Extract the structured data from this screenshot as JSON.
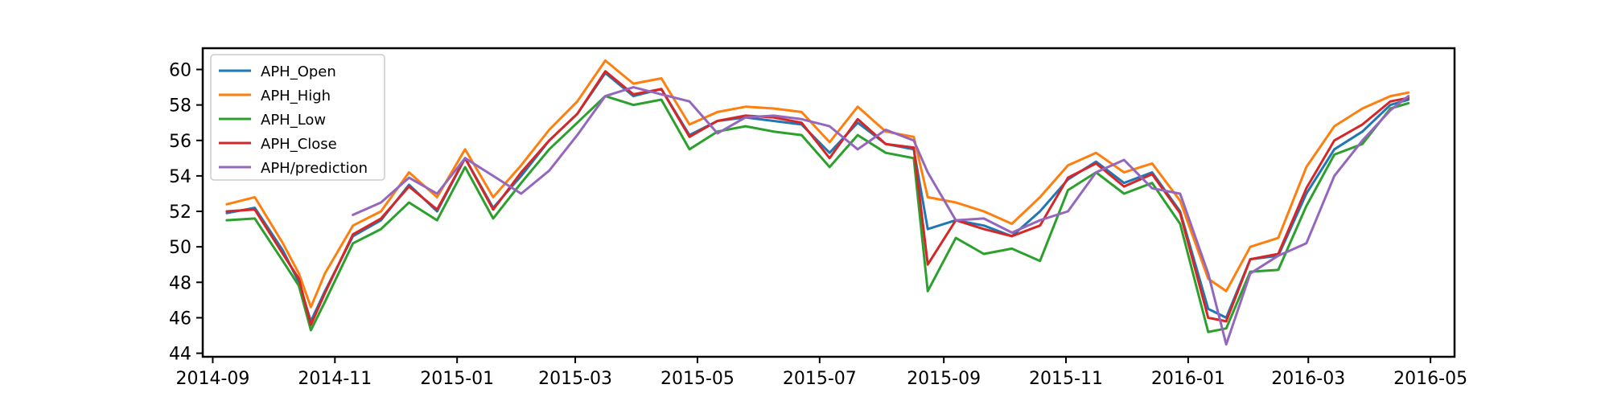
{
  "chart_data": {
    "type": "line",
    "title": "",
    "xlabel": "",
    "ylabel": "",
    "xlim": [
      "2014-08-27",
      "2016-05-13"
    ],
    "ylim": [
      43.8,
      61.2
    ],
    "grid": false,
    "legend_position": "top-left",
    "x_ticks": [
      "2014-09",
      "2014-11",
      "2015-01",
      "2015-03",
      "2015-05",
      "2015-07",
      "2015-09",
      "2015-11",
      "2016-01",
      "2016-03",
      "2016-05"
    ],
    "y_ticks": [
      "44",
      "46",
      "48",
      "50",
      "52",
      "54",
      "56",
      "58",
      "60"
    ],
    "x": [
      "2014-09-08",
      "2014-09-22",
      "2014-10-06",
      "2014-10-14",
      "2014-10-20",
      "2014-10-27",
      "2014-11-10",
      "2014-11-24",
      "2014-12-08",
      "2014-12-22",
      "2015-01-05",
      "2015-01-19",
      "2015-02-02",
      "2015-02-16",
      "2015-03-02",
      "2015-03-16",
      "2015-03-30",
      "2015-04-13",
      "2015-04-27",
      "2015-05-11",
      "2015-05-25",
      "2015-06-08",
      "2015-06-22",
      "2015-07-06",
      "2015-07-20",
      "2015-08-03",
      "2015-08-17",
      "2015-08-24",
      "2015-09-07",
      "2015-09-21",
      "2015-10-05",
      "2015-10-19",
      "2015-11-02",
      "2015-11-16",
      "2015-11-30",
      "2015-12-14",
      "2015-12-28",
      "2016-01-11",
      "2016-01-20",
      "2016-02-01",
      "2016-02-15",
      "2016-02-29",
      "2016-03-14",
      "2016-03-28",
      "2016-04-11",
      "2016-04-20"
    ],
    "series": [
      {
        "name": "APH_Open",
        "color": "#1f77b4",
        "values": [
          51.9,
          52.2,
          49.8,
          48.0,
          45.8,
          47.5,
          50.6,
          51.5,
          53.5,
          52.0,
          55.0,
          52.2,
          54.0,
          56.0,
          57.5,
          59.8,
          58.5,
          58.9,
          56.3,
          57.1,
          57.3,
          57.1,
          56.9,
          55.3,
          57.0,
          55.8,
          55.5,
          51.0,
          51.5,
          51.2,
          50.6,
          52.0,
          53.8,
          54.8,
          53.6,
          54.2,
          52.0,
          46.5,
          46.0,
          49.3,
          49.5,
          53.0,
          55.5,
          56.5,
          58.0,
          58.3
        ]
      },
      {
        "name": "APH_High",
        "color": "#ff7f0e",
        "values": [
          52.4,
          52.8,
          50.2,
          48.5,
          46.6,
          48.5,
          51.2,
          52.0,
          54.2,
          52.8,
          55.5,
          52.8,
          54.6,
          56.6,
          58.2,
          60.5,
          59.2,
          59.5,
          56.9,
          57.6,
          57.9,
          57.8,
          57.6,
          55.9,
          57.9,
          56.5,
          56.2,
          52.8,
          52.5,
          52.0,
          51.3,
          52.8,
          54.6,
          55.3,
          54.2,
          54.7,
          52.6,
          48.2,
          47.5,
          50.0,
          50.5,
          54.5,
          56.8,
          57.8,
          58.5,
          58.7
        ]
      },
      {
        "name": "APH_Low",
        "color": "#2ca02c",
        "values": [
          51.5,
          51.6,
          49.2,
          47.8,
          45.3,
          46.9,
          50.2,
          51.0,
          52.5,
          51.5,
          54.5,
          51.6,
          53.6,
          55.5,
          57.0,
          58.5,
          58.0,
          58.3,
          55.5,
          56.5,
          56.8,
          56.5,
          56.3,
          54.5,
          56.3,
          55.3,
          55.0,
          47.5,
          50.5,
          49.6,
          49.9,
          49.2,
          53.2,
          54.2,
          53.0,
          53.6,
          51.3,
          45.2,
          45.4,
          48.6,
          48.7,
          52.3,
          55.2,
          55.8,
          57.8,
          58.1
        ]
      },
      {
        "name": "APH_Close",
        "color": "#d62728",
        "values": [
          52.0,
          52.1,
          49.6,
          48.2,
          45.6,
          47.4,
          50.7,
          51.6,
          53.4,
          52.1,
          55.0,
          52.1,
          54.2,
          56.0,
          57.5,
          59.9,
          58.6,
          58.9,
          56.2,
          57.1,
          57.4,
          57.3,
          57.0,
          55.0,
          57.2,
          55.8,
          55.6,
          49.0,
          51.5,
          51.0,
          50.6,
          51.2,
          53.9,
          54.7,
          53.4,
          54.1,
          51.9,
          46.0,
          45.8,
          49.3,
          49.6,
          53.3,
          56.0,
          56.9,
          58.2,
          58.4
        ]
      },
      {
        "name": "APH/prediction",
        "color": "#9467bd",
        "values": [
          null,
          null,
          null,
          null,
          null,
          null,
          51.8,
          52.5,
          53.9,
          53.0,
          55.0,
          54.0,
          53.0,
          54.3,
          56.3,
          58.5,
          59.0,
          58.6,
          58.2,
          56.4,
          57.3,
          57.4,
          57.2,
          56.8,
          55.5,
          56.6,
          56.0,
          54.2,
          51.5,
          51.6,
          50.8,
          51.5,
          52.0,
          54.2,
          54.9,
          53.3,
          53.0,
          48.5,
          44.5,
          48.5,
          49.5,
          50.2,
          54.0,
          56.0,
          57.7,
          58.5
        ]
      }
    ]
  }
}
